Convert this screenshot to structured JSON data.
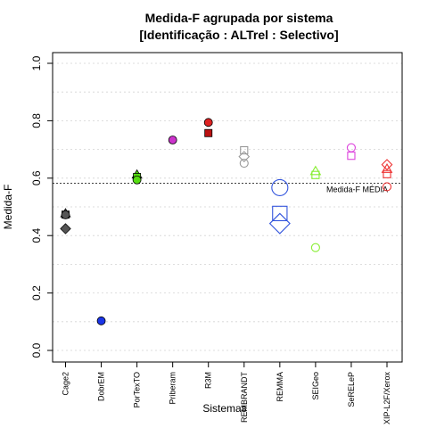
{
  "chart_data": {
    "type": "scatter",
    "title": "Medida-F agrupada por sistema",
    "subtitle": "[Identificação : ALTrel : Selectivo]",
    "xlabel": "Sistemas",
    "ylabel": "Medida-F",
    "ylim": [
      0,
      1.0
    ],
    "yticks": [
      "0.0",
      "0.2",
      "0.4",
      "0.6",
      "0.8",
      "1.0"
    ],
    "ytick_values": [
      0,
      0.2,
      0.4,
      0.6,
      0.8,
      1.0
    ],
    "grid": "horizontal dotted",
    "categories": [
      "Cage2",
      "DobrEM",
      "PorTexTO",
      "Priberam",
      "R3M",
      "REMBRANDT",
      "REMMA",
      "SEIGeo",
      "SeRELeP",
      "XIP-L2F/Xerox"
    ],
    "reference_line": {
      "label": "Medida-F MÉDIA",
      "value": 0.582
    },
    "points": [
      {
        "category": "Cage2",
        "y": 0.477,
        "shape": "triangle",
        "color": "#555555",
        "filled": true,
        "size": 1
      },
      {
        "category": "Cage2",
        "y": 0.473,
        "shape": "square",
        "color": "#555555",
        "filled": true,
        "size": 1
      },
      {
        "category": "Cage2",
        "y": 0.472,
        "shape": "circle",
        "color": "#555555",
        "filled": true,
        "size": 1
      },
      {
        "category": "Cage2",
        "y": 0.424,
        "shape": "diamond",
        "color": "#555555",
        "filled": true,
        "size": 1
      },
      {
        "category": "DobrEM",
        "y": 0.103,
        "shape": "circle",
        "color": "#1a35e8",
        "filled": true,
        "size": 1
      },
      {
        "category": "PorTexTO",
        "y": 0.612,
        "shape": "triangle",
        "color": "#55dd11",
        "filled": true,
        "size": 1
      },
      {
        "category": "PorTexTO",
        "y": 0.604,
        "shape": "square",
        "color": "#55dd11",
        "filled": true,
        "size": 1
      },
      {
        "category": "PorTexTO",
        "y": 0.594,
        "shape": "circle",
        "color": "#55dd11",
        "filled": true,
        "size": 1
      },
      {
        "category": "Priberam",
        "y": 0.733,
        "shape": "circle",
        "color": "#cc33cc",
        "filled": true,
        "size": 1
      },
      {
        "category": "R3M",
        "y": 0.794,
        "shape": "circle",
        "color": "#dd2222",
        "filled": true,
        "size": 1
      },
      {
        "category": "R3M",
        "y": 0.757,
        "shape": "square",
        "color": "#bb1111",
        "filled": true,
        "size": 1
      },
      {
        "category": "REMBRANDT",
        "y": 0.697,
        "shape": "square",
        "color": "#999999",
        "filled": false,
        "size": 1
      },
      {
        "category": "REMBRANDT",
        "y": 0.675,
        "shape": "diamond",
        "color": "#999999",
        "filled": false,
        "size": 1
      },
      {
        "category": "REMBRANDT",
        "y": 0.652,
        "shape": "circle",
        "color": "#999999",
        "filled": false,
        "size": 1
      },
      {
        "category": "REMMA",
        "y": 0.567,
        "shape": "circle",
        "color": "#3355dd",
        "filled": false,
        "size": 2
      },
      {
        "category": "REMMA",
        "y": 0.477,
        "shape": "square",
        "color": "#3355dd",
        "filled": false,
        "size": 2
      },
      {
        "category": "REMMA",
        "y": 0.442,
        "shape": "diamond",
        "color": "#3355dd",
        "filled": false,
        "size": 2
      },
      {
        "category": "SEIGeo",
        "y": 0.624,
        "shape": "triangle",
        "color": "#88ee33",
        "filled": false,
        "size": 1
      },
      {
        "category": "SEIGeo",
        "y": 0.611,
        "shape": "square",
        "color": "#88ee33",
        "filled": false,
        "size": 1
      },
      {
        "category": "SEIGeo",
        "y": 0.358,
        "shape": "circle",
        "color": "#88ee33",
        "filled": false,
        "size": 1
      },
      {
        "category": "SeRELeP",
        "y": 0.706,
        "shape": "circle",
        "color": "#dd44dd",
        "filled": false,
        "size": 1
      },
      {
        "category": "SeRELeP",
        "y": 0.678,
        "shape": "square",
        "color": "#dd44dd",
        "filled": false,
        "size": 1
      },
      {
        "category": "XIP-L2F/Xerox",
        "y": 0.647,
        "shape": "diamond",
        "color": "#ee3333",
        "filled": false,
        "size": 1
      },
      {
        "category": "XIP-L2F/Xerox",
        "y": 0.632,
        "shape": "triangle",
        "color": "#ee3333",
        "filled": false,
        "size": 1
      },
      {
        "category": "XIP-L2F/Xerox",
        "y": 0.614,
        "shape": "square",
        "color": "#ee3333",
        "filled": false,
        "size": 1
      },
      {
        "category": "XIP-L2F/Xerox",
        "y": 0.57,
        "shape": "circle",
        "color": "#ee3333",
        "filled": false,
        "size": 1
      }
    ]
  }
}
